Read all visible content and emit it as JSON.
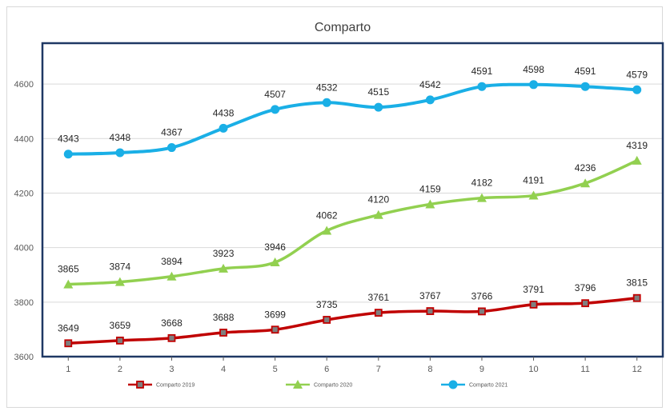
{
  "chart_data": {
    "type": "line",
    "title": "Comparto",
    "xlabel": "",
    "ylabel": "",
    "categories": [
      "1",
      "2",
      "3",
      "4",
      "5",
      "6",
      "7",
      "8",
      "9",
      "10",
      "11",
      "12"
    ],
    "ylim": [
      3600,
      4750
    ],
    "yticks": [
      3600,
      3800,
      4000,
      4200,
      4400,
      4600
    ],
    "grid": true,
    "legend_position": "bottom",
    "series": [
      {
        "name": "Comparto 2019",
        "color": "#c00000",
        "marker": "square",
        "values": [
          3649,
          3659,
          3668,
          3688,
          3699,
          3735,
          3761,
          3767,
          3766,
          3791,
          3796,
          3815
        ]
      },
      {
        "name": "Comparto 2020",
        "color": "#92d050",
        "marker": "triangle",
        "values": [
          3865,
          3874,
          3894,
          3923,
          3946,
          4062,
          4120,
          4159,
          4182,
          4191,
          4236,
          4319
        ]
      },
      {
        "name": "Comparto 2021",
        "color": "#1aafe6",
        "marker": "circle",
        "values": [
          4343,
          4348,
          4367,
          4438,
          4507,
          4532,
          4515,
          4542,
          4591,
          4598,
          4591,
          4579
        ]
      }
    ]
  }
}
